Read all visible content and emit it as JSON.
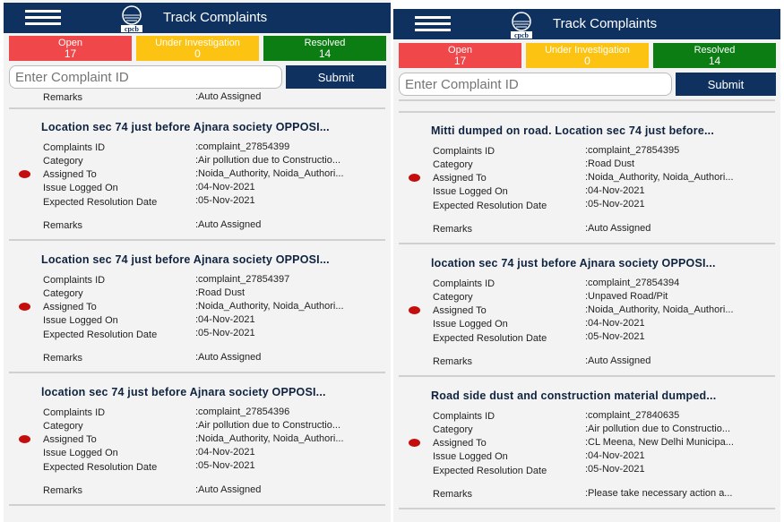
{
  "app": {
    "title": "Track Complaints",
    "logo_text": "cpcb"
  },
  "stats": {
    "open_label": "Open",
    "open_count": "17",
    "inv_label": "Under Investigation",
    "inv_count": "0",
    "res_label": "Resolved",
    "res_count": "14"
  },
  "search": {
    "placeholder": "Enter Complaint ID",
    "submit_label": "Submit"
  },
  "labels": {
    "id": "Complaints ID",
    "category": "Category",
    "assigned": "Assigned To",
    "logged": "Issue Logged On",
    "expected": "Expected Resolution Date",
    "remarks": "Remarks"
  },
  "left": {
    "partial_remarks": ":Auto Assigned",
    "cards": [
      {
        "title": "Location sec 74 just before Ajnara society OPPOSI...",
        "id": ":complaint_27854399",
        "category": ":Air pollution due to Constructio...",
        "assigned": ":Noida_Authority, Noida_Authori...",
        "logged": ":04-Nov-2021",
        "expected": ":05-Nov-2021",
        "remarks": ":Auto Assigned"
      },
      {
        "title": "Location sec 74 just before Ajnara society OPPOSI...",
        "id": ":complaint_27854397",
        "category": ":Road Dust",
        "assigned": ":Noida_Authority, Noida_Authori...",
        "logged": ":04-Nov-2021",
        "expected": ":05-Nov-2021",
        "remarks": ":Auto Assigned"
      },
      {
        "title": "location sec 74 just before Ajnara society OPPOSI...",
        "id": ":complaint_27854396",
        "category": ":Air pollution due to Constructio...",
        "assigned": ":Noida_Authority, Noida_Authori...",
        "logged": ":04-Nov-2021",
        "expected": ":05-Nov-2021",
        "remarks": ":Auto Assigned"
      }
    ]
  },
  "right": {
    "cards": [
      {
        "title": "Mitti  dumped on road. Location sec 74 just before...",
        "id": ":complaint_27854395",
        "category": ":Road Dust",
        "assigned": ":Noida_Authority, Noida_Authori...",
        "logged": ":04-Nov-2021",
        "expected": ":05-Nov-2021",
        "remarks": ":Auto Assigned"
      },
      {
        "title": "location sec 74 just before Ajnara society OPPOSI...",
        "id": ":complaint_27854394",
        "category": ":Unpaved Road/Pit",
        "assigned": ":Noida_Authority, Noida_Authori...",
        "logged": ":04-Nov-2021",
        "expected": ":05-Nov-2021",
        "remarks": ":Auto Assigned"
      },
      {
        "title": "Road side dust and construction material dumped...",
        "id": ":complaint_27840635",
        "category": ":Air pollution due to Constructio...",
        "assigned": ":CL Meena, New Delhi Municipa...",
        "logged": ":04-Nov-2021",
        "expected": ":05-Nov-2021",
        "remarks": ":Please take necessary action a..."
      }
    ]
  },
  "colors": {
    "header": "#0e3160",
    "open": "#f0474a",
    "investigation": "#fcc313",
    "resolved": "#0b7d13",
    "status_dot": "#c40d0d"
  }
}
